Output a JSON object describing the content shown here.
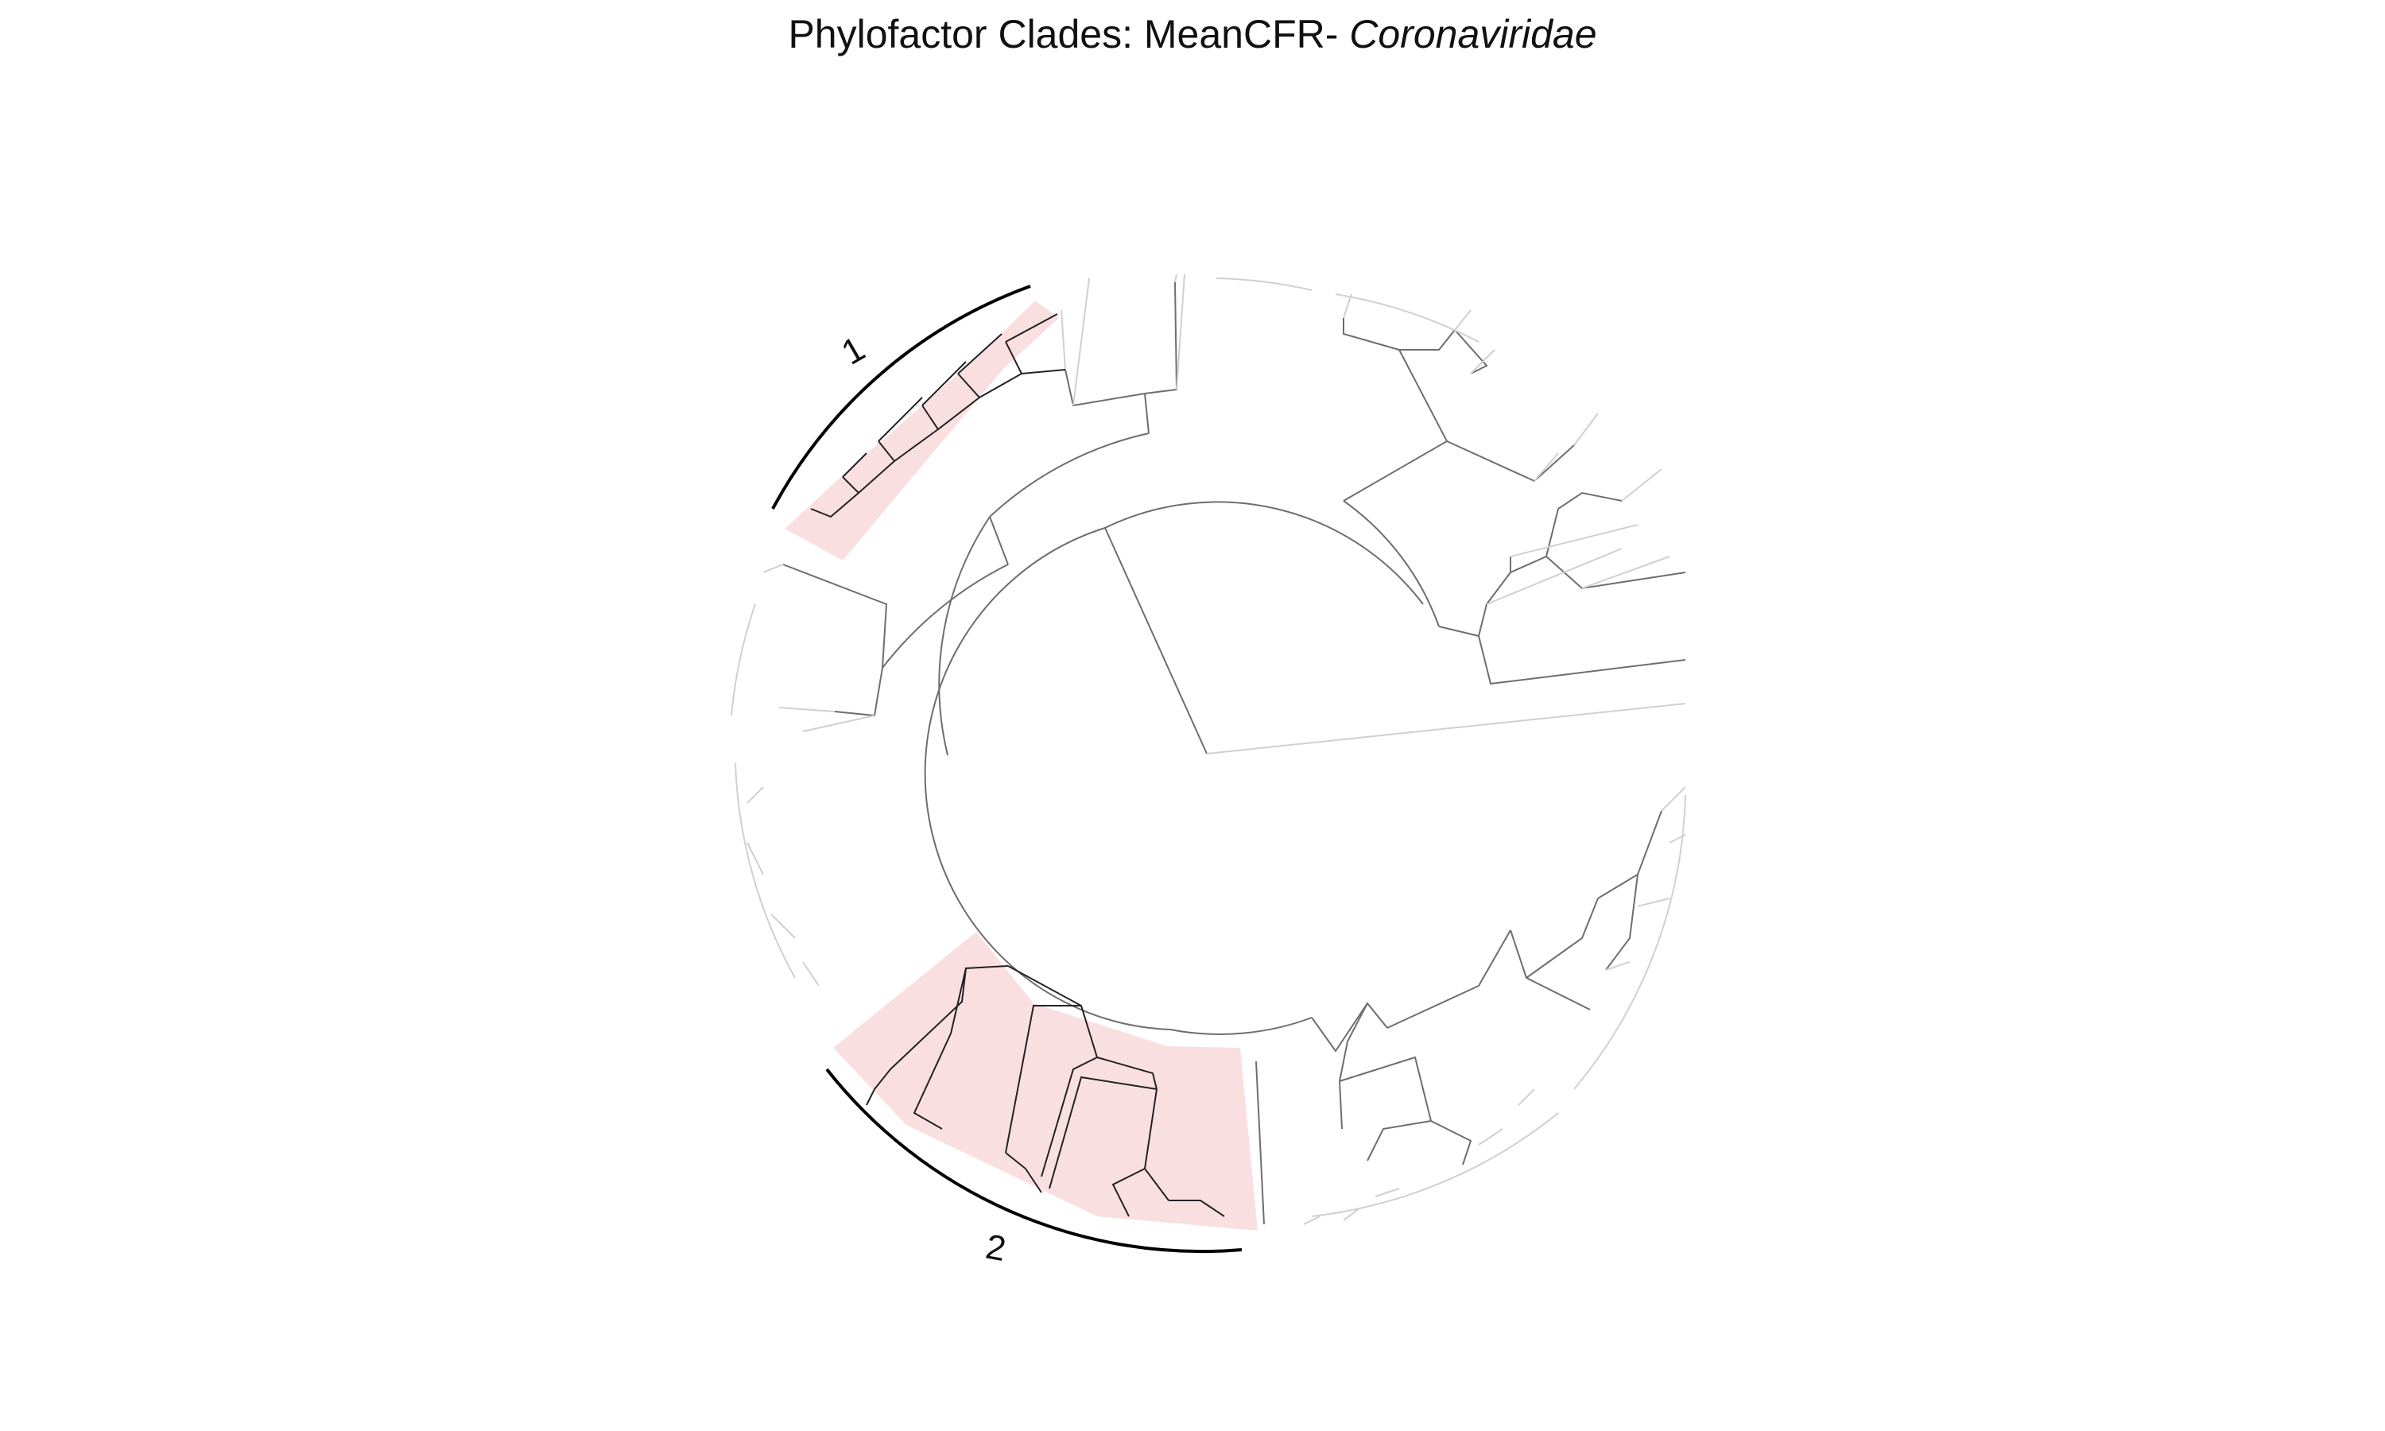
{
  "title": {
    "prefix": "Phylofactor Clades: MeanCFR- ",
    "taxon": "Coronaviridae"
  },
  "colors": {
    "clade_fill": "#f6c9cc",
    "clade_arc": "#000000",
    "branch_strong": "#6e6e6e",
    "branch_faint": "#d0d0d0",
    "highlighted_branch": "#222222"
  },
  "clades": [
    {
      "id": "1",
      "label": "1"
    },
    {
      "id": "2",
      "label": "2"
    }
  ]
}
